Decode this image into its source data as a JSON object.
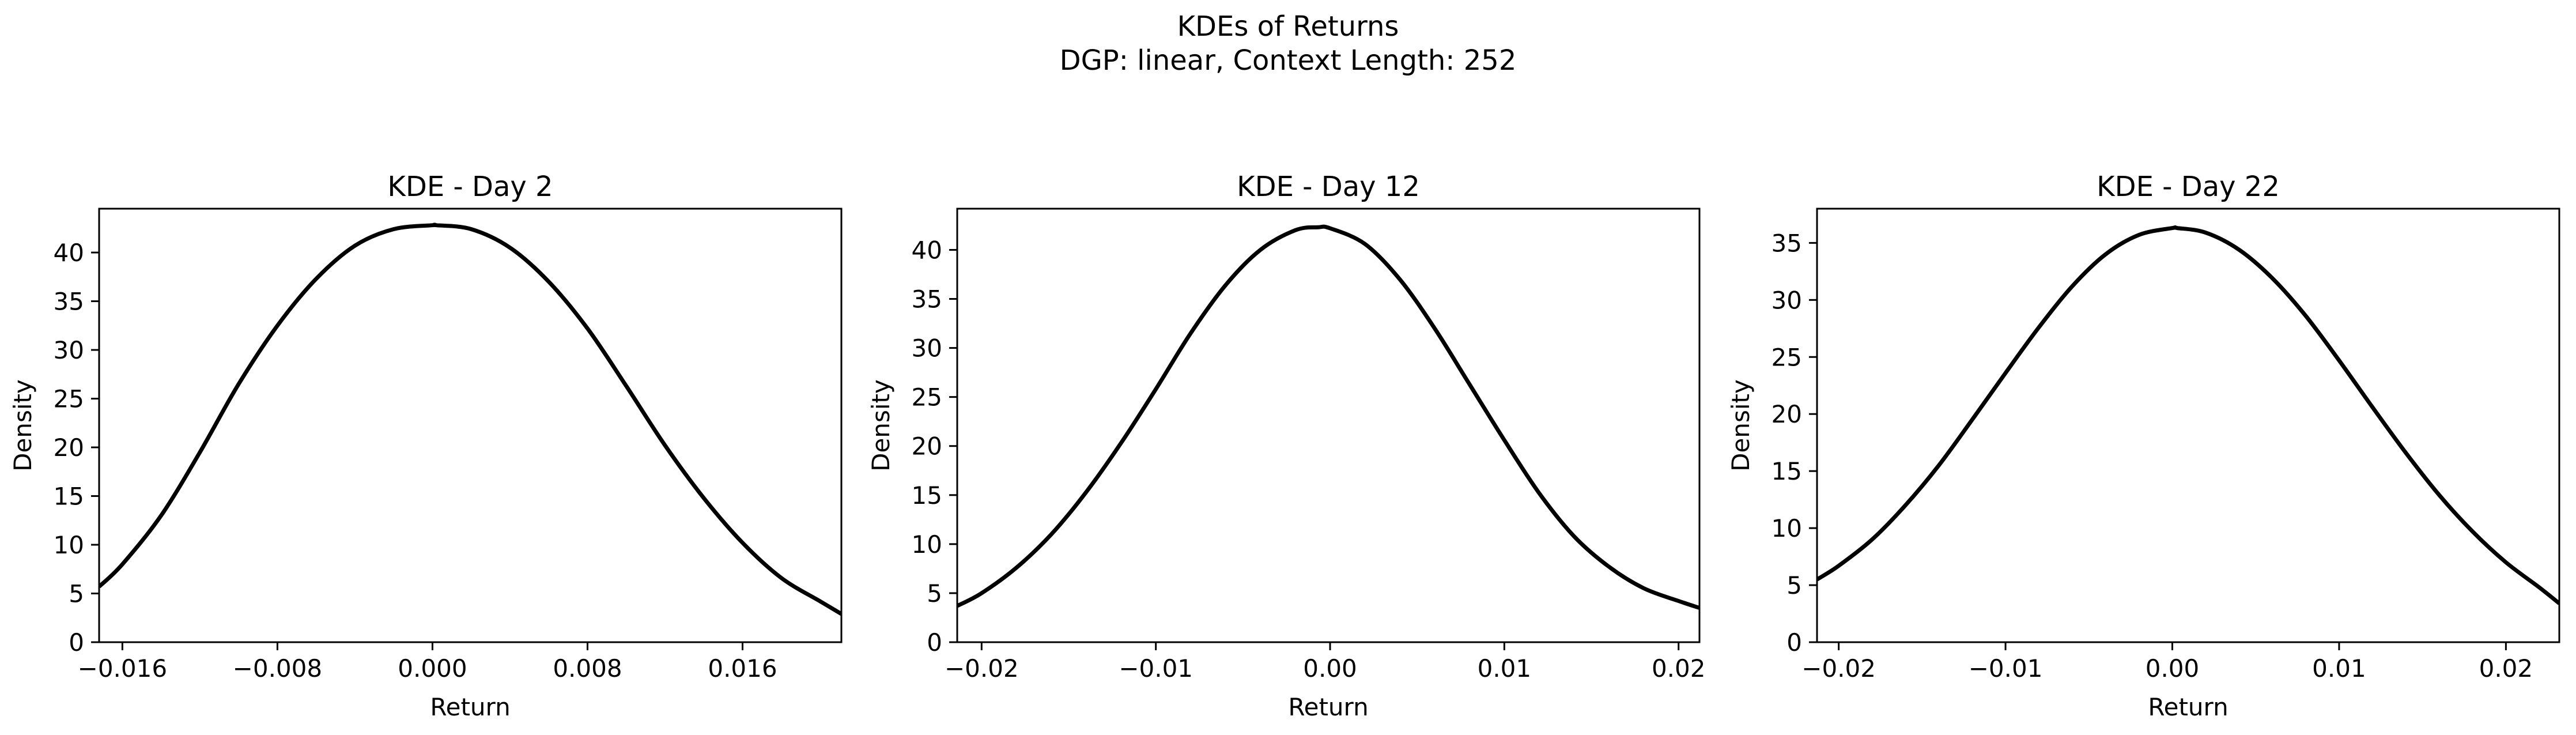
{
  "figure": {
    "suptitle_line1": "KDEs of Returns",
    "suptitle_line2": "DGP: linear, Context Length: 252"
  },
  "colors": {
    "line": "#000000",
    "axes": "#000000",
    "background": "#ffffff"
  },
  "chart_data": [
    {
      "type": "line",
      "title": "KDE - Day 2",
      "xlabel": "Return",
      "ylabel": "Density",
      "xlim": [
        -0.0172,
        0.0211
      ],
      "ylim": [
        0,
        44.5
      ],
      "xticks": [
        -0.016,
        -0.008,
        0.0,
        0.008,
        0.016
      ],
      "xtick_labels": [
        "−0.016",
        "−0.008",
        "0.000",
        "0.008",
        "0.016"
      ],
      "yticks": [
        0,
        5,
        10,
        15,
        20,
        25,
        30,
        35,
        40
      ],
      "ytick_labels": [
        "0",
        "5",
        "10",
        "15",
        "20",
        "25",
        "30",
        "35",
        "40"
      ],
      "series": [
        {
          "name": "KDE",
          "x": [
            -0.0172,
            -0.016,
            -0.014,
            -0.012,
            -0.01,
            -0.008,
            -0.006,
            -0.004,
            -0.002,
            0.0,
            0.0002,
            0.002,
            0.004,
            0.006,
            0.008,
            0.01,
            0.012,
            0.014,
            0.016,
            0.018,
            0.02,
            0.0211
          ],
          "y": [
            5.7,
            8.0,
            13.0,
            19.5,
            26.5,
            32.5,
            37.3,
            40.7,
            42.4,
            42.8,
            42.8,
            42.4,
            40.5,
            37.0,
            32.2,
            26.3,
            20.2,
            14.8,
            10.2,
            6.6,
            4.2,
            2.9
          ]
        }
      ]
    },
    {
      "type": "line",
      "title": "KDE - Day 12",
      "xlabel": "Return",
      "ylabel": "Density",
      "xlim": [
        -0.0214,
        0.0212
      ],
      "ylim": [
        0,
        44.2
      ],
      "xticks": [
        -0.02,
        -0.01,
        0.0,
        0.01,
        0.02
      ],
      "xtick_labels": [
        "−0.02",
        "−0.01",
        "0.00",
        "0.01",
        "0.02"
      ],
      "yticks": [
        0,
        5,
        10,
        15,
        20,
        25,
        30,
        35,
        40
      ],
      "ytick_labels": [
        "0",
        "5",
        "10",
        "15",
        "20",
        "25",
        "30",
        "35",
        "40"
      ],
      "series": [
        {
          "name": "KDE",
          "x": [
            -0.0214,
            -0.02,
            -0.018,
            -0.016,
            -0.014,
            -0.012,
            -0.01,
            -0.008,
            -0.006,
            -0.004,
            -0.002,
            -0.0007,
            0.0,
            0.002,
            0.004,
            0.006,
            0.008,
            0.01,
            0.012,
            0.014,
            0.016,
            0.018,
            0.02,
            0.0212
          ],
          "y": [
            3.7,
            5.0,
            7.6,
            11.0,
            15.3,
            20.3,
            25.8,
            31.5,
            36.4,
            40.0,
            42.0,
            42.3,
            42.2,
            40.6,
            37.0,
            32.0,
            26.3,
            20.6,
            15.2,
            10.8,
            7.7,
            5.5,
            4.2,
            3.5
          ]
        }
      ]
    },
    {
      "type": "line",
      "title": "KDE - Day 22",
      "xlabel": "Return",
      "ylabel": "Density",
      "xlim": [
        -0.0213,
        0.0232
      ],
      "ylim": [
        0,
        38.0
      ],
      "xticks": [
        -0.02,
        -0.01,
        0.0,
        0.01,
        0.02
      ],
      "xtick_labels": [
        "−0.02",
        "−0.01",
        "0.00",
        "0.01",
        "0.02"
      ],
      "yticks": [
        0,
        5,
        10,
        15,
        20,
        25,
        30,
        35
      ],
      "ytick_labels": [
        "0",
        "5",
        "10",
        "15",
        "20",
        "25",
        "30",
        "35"
      ],
      "series": [
        {
          "name": "KDE",
          "x": [
            -0.0213,
            -0.02,
            -0.018,
            -0.016,
            -0.014,
            -0.012,
            -0.01,
            -0.008,
            -0.006,
            -0.004,
            -0.002,
            0.0,
            0.0003,
            0.002,
            0.004,
            0.006,
            0.008,
            0.01,
            0.012,
            0.014,
            0.016,
            0.018,
            0.02,
            0.022,
            0.0232
          ],
          "y": [
            5.5,
            6.7,
            9.0,
            12.0,
            15.5,
            19.5,
            23.6,
            27.6,
            31.2,
            34.0,
            35.7,
            36.3,
            36.3,
            35.9,
            34.4,
            31.9,
            28.6,
            24.7,
            20.6,
            16.6,
            12.9,
            9.7,
            7.0,
            4.8,
            3.4
          ]
        }
      ]
    }
  ]
}
